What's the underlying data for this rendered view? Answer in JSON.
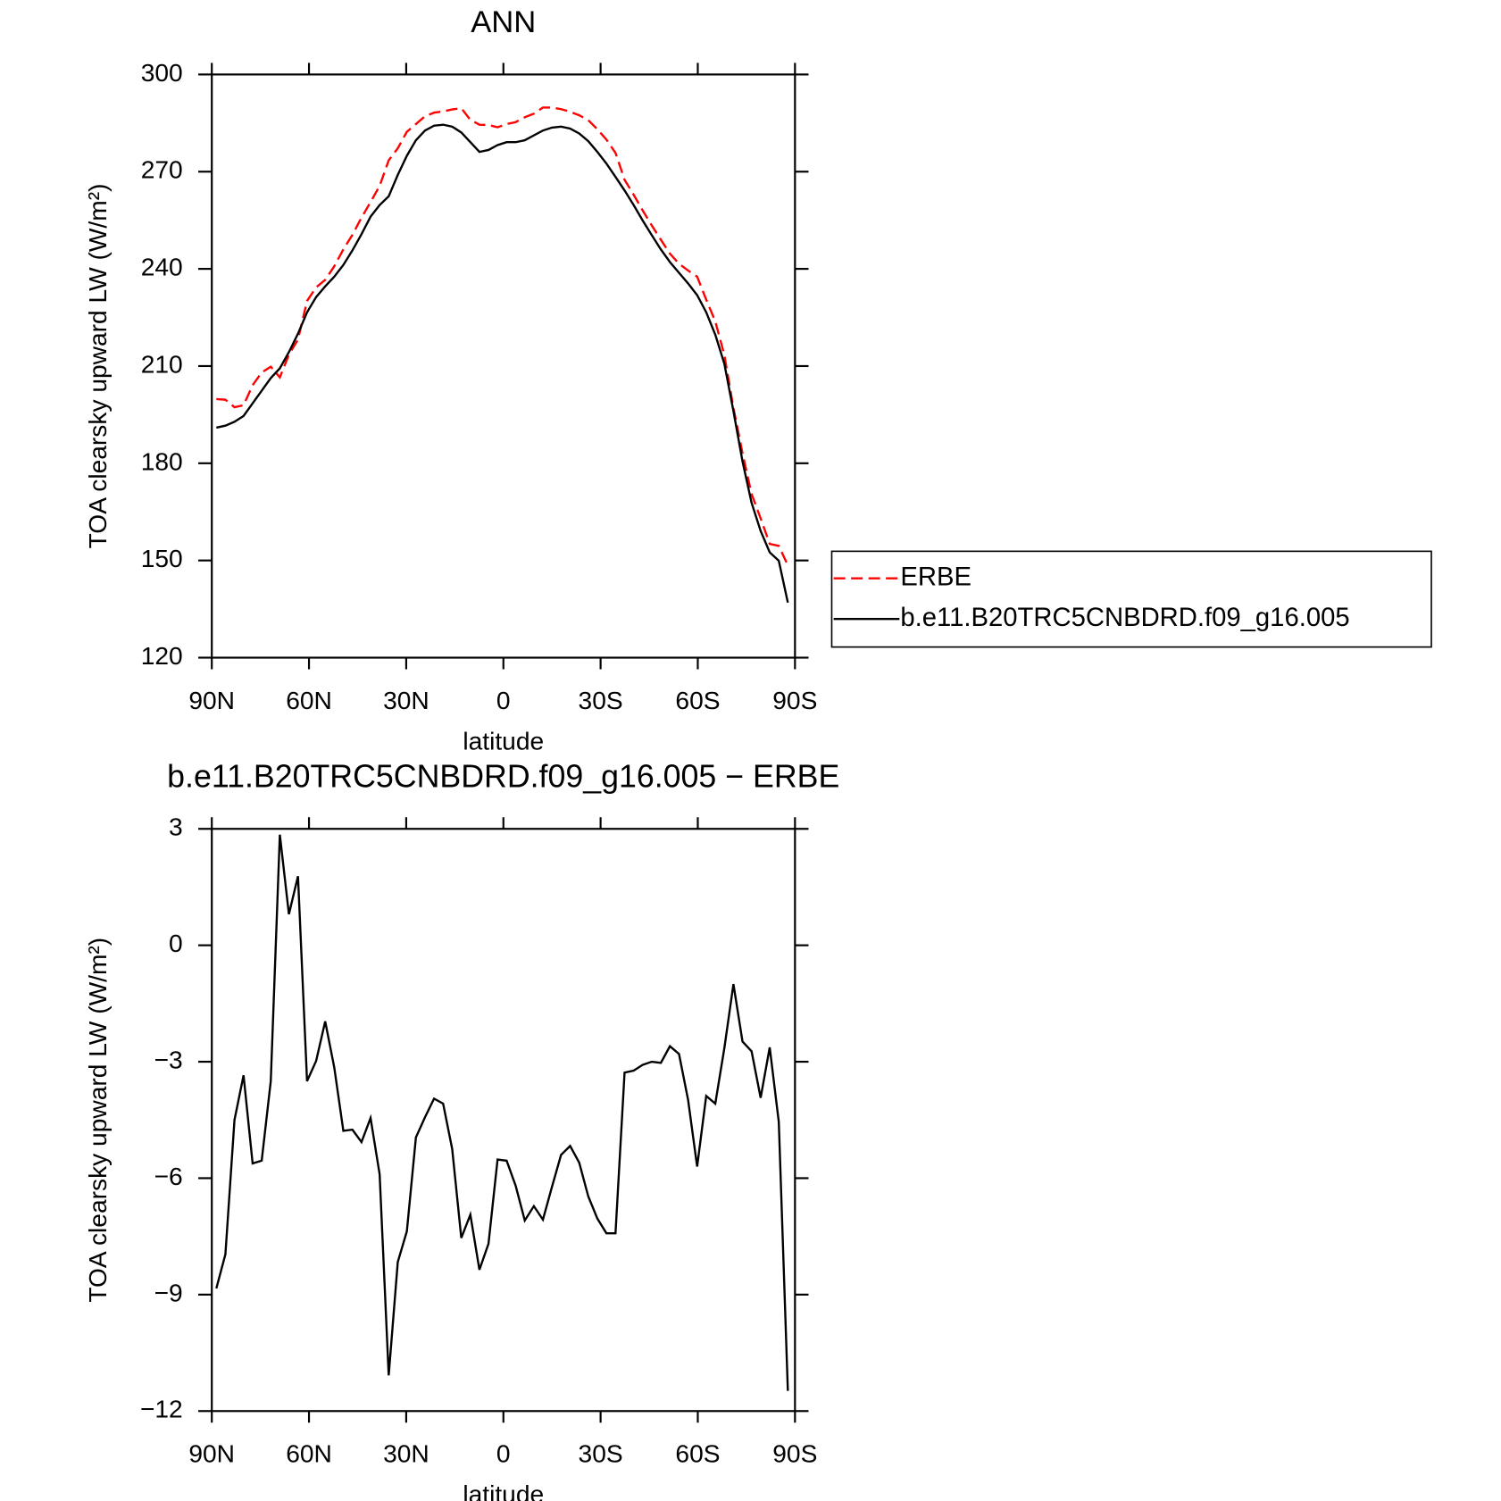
{
  "chart_data": [
    {
      "type": "line",
      "title": "ANN",
      "xlabel": "latitude",
      "ylabel": "TOA clearsky upward LW (W/m²)",
      "x": [
        88.6,
        85.8,
        83.0,
        80.2,
        77.4,
        74.6,
        71.8,
        69.0,
        66.2,
        63.4,
        60.6,
        57.8,
        55.0,
        52.2,
        49.4,
        46.6,
        43.8,
        41.0,
        38.2,
        35.4,
        32.6,
        29.8,
        27.0,
        24.2,
        21.4,
        18.6,
        15.8,
        13.0,
        10.2,
        7.4,
        4.6,
        1.8,
        -1.0,
        -3.8,
        -6.6,
        -9.4,
        -12.2,
        -15.0,
        -17.8,
        -20.6,
        -23.4,
        -26.2,
        -29.0,
        -31.8,
        -34.6,
        -37.4,
        -40.2,
        -43.0,
        -45.8,
        -48.6,
        -51.4,
        -54.2,
        -57.0,
        -59.8,
        -62.6,
        -65.4,
        -68.2,
        -71.0,
        -73.8,
        -76.6,
        -79.4,
        -82.2,
        -85.0,
        -87.8
      ],
      "series": [
        {
          "name": "ERBE",
          "color": "#ff0000",
          "dash": "dashed",
          "values": [
            199.8,
            199.6,
            197.3,
            197.9,
            204.1,
            208.0,
            209.8,
            206.5,
            213.5,
            218.2,
            230.1,
            234.3,
            236.6,
            240.8,
            246.0,
            250.5,
            255.8,
            260.6,
            265.6,
            273.5,
            277.2,
            282.3,
            284.7,
            287.1,
            288.2,
            288.6,
            289.2,
            289.6,
            286.0,
            284.5,
            284.4,
            283.7,
            284.7,
            285.3,
            286.8,
            287.9,
            289.8,
            289.8,
            289.3,
            288.5,
            287.4,
            285.9,
            283.1,
            279.9,
            275.8,
            267.5,
            262.9,
            258.0,
            253.4,
            249.0,
            244.7,
            241.6,
            239.5,
            237.6,
            230.5,
            223.8,
            213.4,
            197.1,
            183.1,
            170.5,
            163.0,
            155.1,
            154.5,
            148.5
          ]
        },
        {
          "name": "b.e11.B20TRC5CNBDRD.f09_g16.005",
          "color": "#000000",
          "dash": "solid",
          "values": [
            191.0,
            191.6,
            192.8,
            194.6,
            198.5,
            202.4,
            206.3,
            209.3,
            214.3,
            220.0,
            226.6,
            231.3,
            234.6,
            237.6,
            241.2,
            245.7,
            250.7,
            256.1,
            259.7,
            262.4,
            269.0,
            274.9,
            279.7,
            282.7,
            284.2,
            284.5,
            283.9,
            282.1,
            279.1,
            276.1,
            276.7,
            278.2,
            279.1,
            279.1,
            279.7,
            281.2,
            282.7,
            283.6,
            283.9,
            283.3,
            281.8,
            279.4,
            276.1,
            272.5,
            268.4,
            264.2,
            259.7,
            254.9,
            250.4,
            246.0,
            242.1,
            238.8,
            235.5,
            231.9,
            226.6,
            219.7,
            210.7,
            196.1,
            180.6,
            167.8,
            159.1,
            152.5,
            149.9,
            137.0
          ]
        }
      ],
      "xlim": [
        90,
        -90
      ],
      "xticks": [
        {
          "value": 90,
          "label": "90N"
        },
        {
          "value": 60,
          "label": "60N"
        },
        {
          "value": 30,
          "label": "30N"
        },
        0,
        {
          "value": -30,
          "label": "30S"
        },
        {
          "value": -60,
          "label": "60S"
        },
        {
          "value": -90,
          "label": "90S"
        }
      ],
      "ylim": [
        120,
        300
      ],
      "yticks": [
        120,
        150,
        180,
        210,
        240,
        270,
        300
      ],
      "grid": false,
      "legend": "outside-right"
    },
    {
      "type": "line",
      "title": "b.e11.B20TRC5CNBDRD.f09_g16.005 − ERBE",
      "xlabel": "latitude",
      "ylabel": "TOA clearsky upward LW (W/m²)",
      "x": [
        88.6,
        85.8,
        83.0,
        80.2,
        77.4,
        74.6,
        71.8,
        69.0,
        66.2,
        63.4,
        60.6,
        57.8,
        55.0,
        52.2,
        49.4,
        46.6,
        43.8,
        41.0,
        38.2,
        35.4,
        32.6,
        29.8,
        27.0,
        24.2,
        21.4,
        18.6,
        15.8,
        13.0,
        10.2,
        7.4,
        4.6,
        1.8,
        -1.0,
        -3.8,
        -6.6,
        -9.4,
        -12.2,
        -15.0,
        -17.8,
        -20.6,
        -23.4,
        -26.2,
        -29.0,
        -31.8,
        -34.6,
        -37.4,
        -40.2,
        -43.0,
        -45.8,
        -48.6,
        -51.4,
        -54.2,
        -57.0,
        -59.8,
        -62.6,
        -65.4,
        -68.2,
        -71.0,
        -73.8,
        -76.6,
        -79.4,
        -82.2,
        -85.0,
        -87.8
      ],
      "series": [
        {
          "color": "#000000",
          "dash": "solid",
          "values": [
            -8.84,
            -7.96,
            -4.5,
            -3.35,
            -5.62,
            -5.55,
            -3.5,
            2.85,
            0.8,
            1.78,
            -3.5,
            -2.98,
            -1.96,
            -3.15,
            -4.78,
            -4.75,
            -5.07,
            -4.45,
            -5.9,
            -11.08,
            -8.16,
            -7.37,
            -4.95,
            -4.43,
            -3.95,
            -4.08,
            -5.25,
            -7.54,
            -6.94,
            -8.36,
            -7.69,
            -5.52,
            -5.55,
            -6.2,
            -7.09,
            -6.72,
            -7.07,
            -6.22,
            -5.4,
            -5.17,
            -5.6,
            -6.47,
            -7.04,
            -7.42,
            -7.42,
            -3.28,
            -3.23,
            -3.08,
            -3.0,
            -3.03,
            -2.6,
            -2.8,
            -3.98,
            -5.7,
            -3.88,
            -4.08,
            -2.65,
            -1.0,
            -2.48,
            -2.73,
            -3.93,
            -2.63,
            -4.55,
            -11.48
          ]
        }
      ],
      "xlim": [
        90,
        -90
      ],
      "xticks": [
        {
          "value": 90,
          "label": "90N"
        },
        {
          "value": 60,
          "label": "60N"
        },
        {
          "value": 30,
          "label": "30N"
        },
        0,
        {
          "value": -30,
          "label": "30S"
        },
        {
          "value": -60,
          "label": "60S"
        },
        {
          "value": -90,
          "label": "90S"
        }
      ],
      "ylim": [
        -12,
        3
      ],
      "yticks": [
        {
          "value": -12,
          "label": "−12"
        },
        {
          "value": -9,
          "label": "−9"
        },
        {
          "value": -6,
          "label": "−6"
        },
        {
          "value": -3,
          "label": "−3"
        },
        0,
        3
      ],
      "grid": false
    }
  ]
}
